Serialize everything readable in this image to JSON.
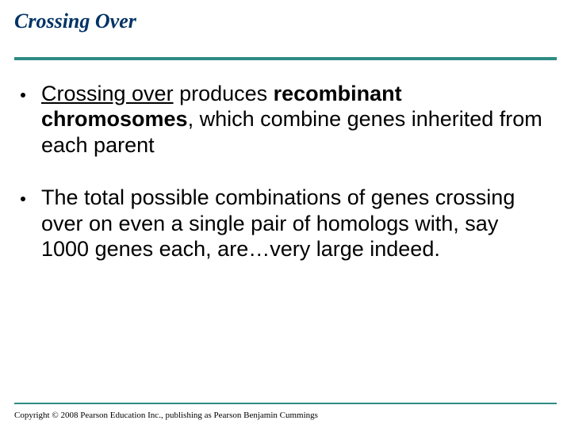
{
  "title": "Crossing Over",
  "colors": {
    "title_color": "#003366",
    "rule_color": "#2f8c84",
    "text_color": "#000000",
    "background": "#ffffff"
  },
  "typography": {
    "title_fontsize": 26,
    "body_fontsize": 27,
    "copyright_fontsize": 11
  },
  "bullets": [
    {
      "pre": "",
      "under": "Crossing over",
      "mid1": " produces ",
      "bold": "recombinant chromosomes",
      "post": ", which combine genes inherited from each parent"
    },
    {
      "plain": "The total possible combinations of genes crossing over on even a single pair of homologs with, say 1000 genes each, are…very large indeed."
    }
  ],
  "copyright": "Copyright © 2008 Pearson Education Inc., publishing as Pearson Benjamin Cummings"
}
